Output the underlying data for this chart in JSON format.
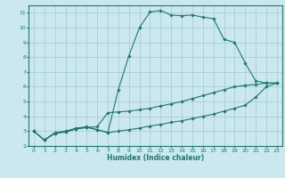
{
  "xlabel": "Humidex (Indice chaleur)",
  "bg_color": "#cce8ef",
  "line_color": "#1a7a6e",
  "grid_color": "#a8cdd5",
  "xlim": [
    -0.5,
    23.5
  ],
  "ylim": [
    2,
    11.5
  ],
  "xticks": [
    0,
    1,
    2,
    3,
    4,
    5,
    6,
    7,
    8,
    9,
    10,
    11,
    12,
    13,
    14,
    15,
    16,
    17,
    18,
    19,
    20,
    21,
    22,
    23
  ],
  "yticks": [
    2,
    3,
    4,
    5,
    6,
    7,
    8,
    9,
    10,
    11
  ],
  "line1_x": [
    0,
    1,
    2,
    3,
    4,
    5,
    6,
    7,
    8,
    9,
    10,
    11,
    12,
    13,
    14,
    15,
    16,
    17,
    18,
    19,
    20,
    21,
    22,
    23
  ],
  "line1_y": [
    3.0,
    2.4,
    2.9,
    3.0,
    3.2,
    3.3,
    3.1,
    2.9,
    5.8,
    8.1,
    10.0,
    11.05,
    11.15,
    10.85,
    10.8,
    10.85,
    10.7,
    10.6,
    9.2,
    9.0,
    7.6,
    6.4,
    6.25,
    6.25
  ],
  "line2_x": [
    0,
    1,
    2,
    3,
    4,
    5,
    6,
    7,
    8,
    9,
    10,
    11,
    12,
    13,
    14,
    15,
    16,
    17,
    18,
    19,
    20,
    21,
    22,
    23
  ],
  "line2_y": [
    3.0,
    2.4,
    2.85,
    2.95,
    3.15,
    3.25,
    3.3,
    4.25,
    4.3,
    4.35,
    4.45,
    4.55,
    4.7,
    4.85,
    5.0,
    5.2,
    5.4,
    5.6,
    5.8,
    6.0,
    6.1,
    6.15,
    6.25,
    6.25
  ],
  "line3_x": [
    0,
    1,
    2,
    3,
    4,
    5,
    6,
    7,
    8,
    9,
    10,
    11,
    12,
    13,
    14,
    15,
    16,
    17,
    18,
    19,
    20,
    21,
    22,
    23
  ],
  "line3_y": [
    3.0,
    2.4,
    2.85,
    2.95,
    3.15,
    3.25,
    3.1,
    2.9,
    3.0,
    3.1,
    3.2,
    3.35,
    3.45,
    3.6,
    3.7,
    3.85,
    4.0,
    4.15,
    4.35,
    4.55,
    4.75,
    5.3,
    6.0,
    6.25
  ]
}
